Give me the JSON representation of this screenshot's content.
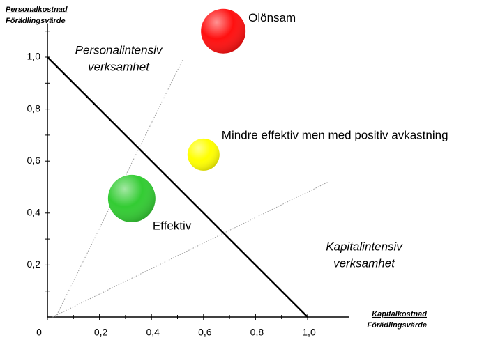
{
  "chart_data": {
    "type": "bubble",
    "y_label": [
      "Personalkostnad",
      "Förädlingsvärde"
    ],
    "x_label": [
      "Kapitalkostnad",
      "Förädlingsvärde"
    ],
    "xlim": [
      0,
      1.16
    ],
    "ylim": [
      0,
      1.13
    ],
    "xticks": [
      0,
      {
        "value": 0.2,
        "label": "0,2"
      },
      {
        "value": 0.4,
        "label": "0,4"
      },
      {
        "value": 0.6,
        "label": "0,6"
      },
      {
        "value": 0.8,
        "label": "0,8"
      },
      {
        "value": 1.0,
        "label": "1,0"
      }
    ],
    "yticks": [
      {
        "value": 0.2,
        "label": "0,2"
      },
      {
        "value": 0.4,
        "label": "0,4"
      },
      {
        "value": 0.6,
        "label": "0,6"
      },
      {
        "value": 0.8,
        "label": "0,8"
      },
      {
        "value": 1.0,
        "label": "1,0"
      }
    ],
    "points": {
      "x": [
        0.676,
        0.6,
        0.324
      ],
      "y": [
        1.1,
        0.625,
        0.456
      ],
      "sizes": [
        32,
        23,
        34
      ],
      "colors": [
        "#ff1010",
        "#ffff00",
        "#33cc33"
      ],
      "labels": [
        "Olönsam",
        "Mindre effektiv men med positiv avkastning",
        "Effektiv"
      ]
    },
    "regions": [
      [
        "Personalintensiv",
        "verksamhet"
      ],
      [
        "Kapitalintensiv",
        "verksamhet"
      ]
    ],
    "lines": [
      {
        "x": [
          0,
          1
        ],
        "y": [
          1,
          0
        ],
        "style": "solid"
      },
      {
        "x": [
          0.032,
          0.52
        ],
        "y": [
          0,
          0.99
        ],
        "style": "dotted"
      },
      {
        "x": [
          0.02,
          1.08
        ],
        "y": [
          0,
          0.52
        ],
        "style": "dotted"
      }
    ]
  }
}
